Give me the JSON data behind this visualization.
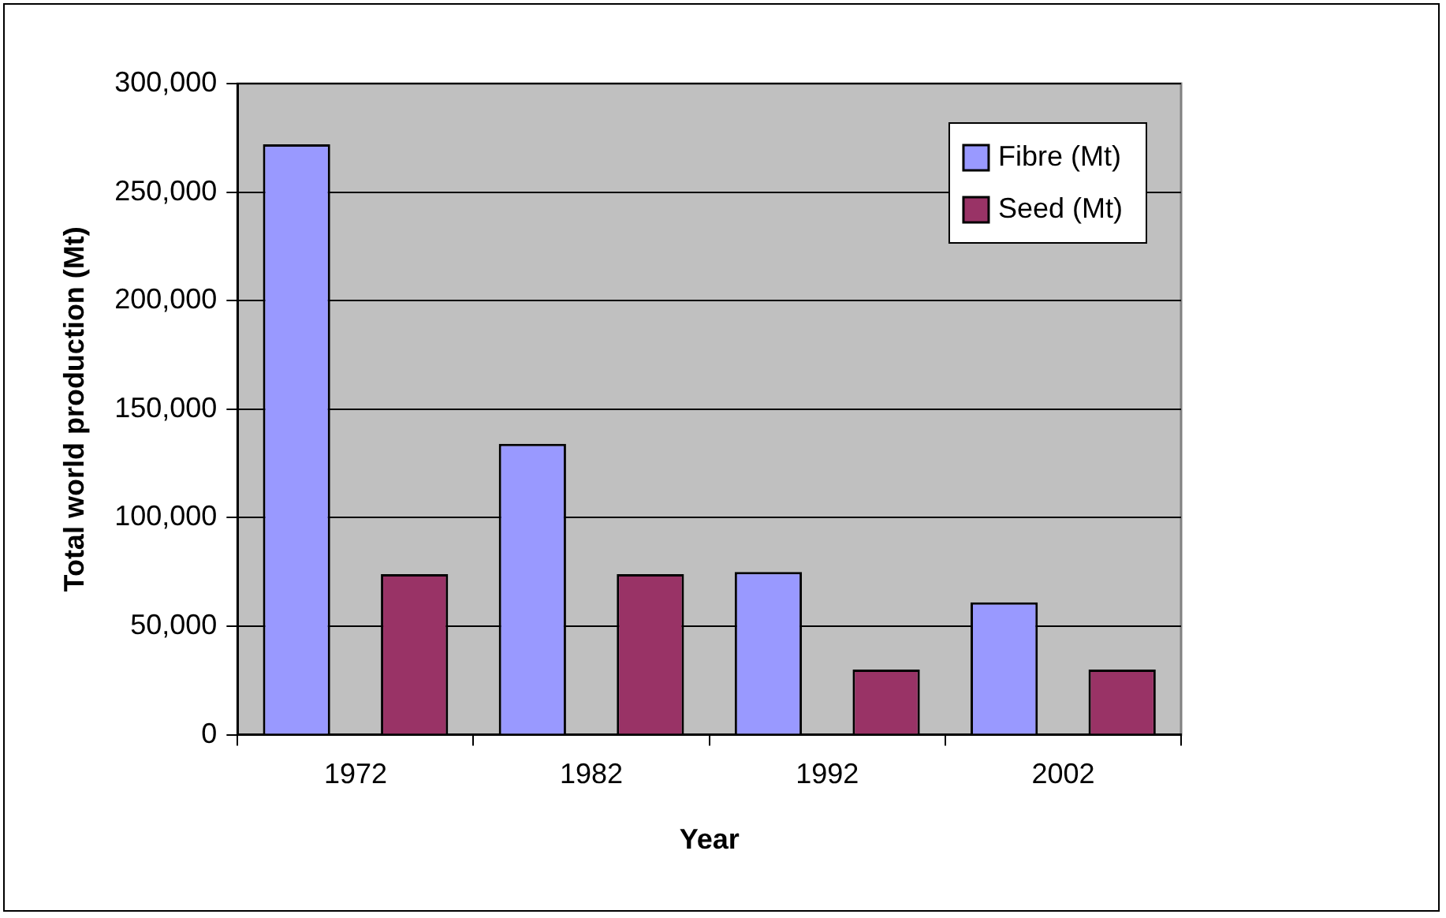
{
  "chart_data": {
    "type": "bar",
    "xlabel": "Year",
    "ylabel": "Total world production (Mt)",
    "categories": [
      "1972",
      "1982",
      "1992",
      "2002"
    ],
    "series": [
      {
        "name": "Fibre (Mt)",
        "color": "#9999ff",
        "values": [
          272000,
          134000,
          75000,
          61000
        ]
      },
      {
        "name": "Seed (Mt)",
        "color": "#993366",
        "values": [
          74000,
          74000,
          30000,
          30000
        ]
      }
    ],
    "ylim": [
      0,
      300000
    ],
    "yticks": [
      0,
      {
        "value": 50000,
        "label": "50,000"
      },
      {
        "value": 100000,
        "label": "100,000"
      },
      {
        "value": 150000,
        "label": "150,000"
      },
      {
        "value": 200000,
        "label": "200,000"
      },
      {
        "value": 250000,
        "label": "250,000"
      },
      {
        "value": 300000,
        "label": "300,000"
      }
    ],
    "grid": "y",
    "legend": "top right"
  }
}
